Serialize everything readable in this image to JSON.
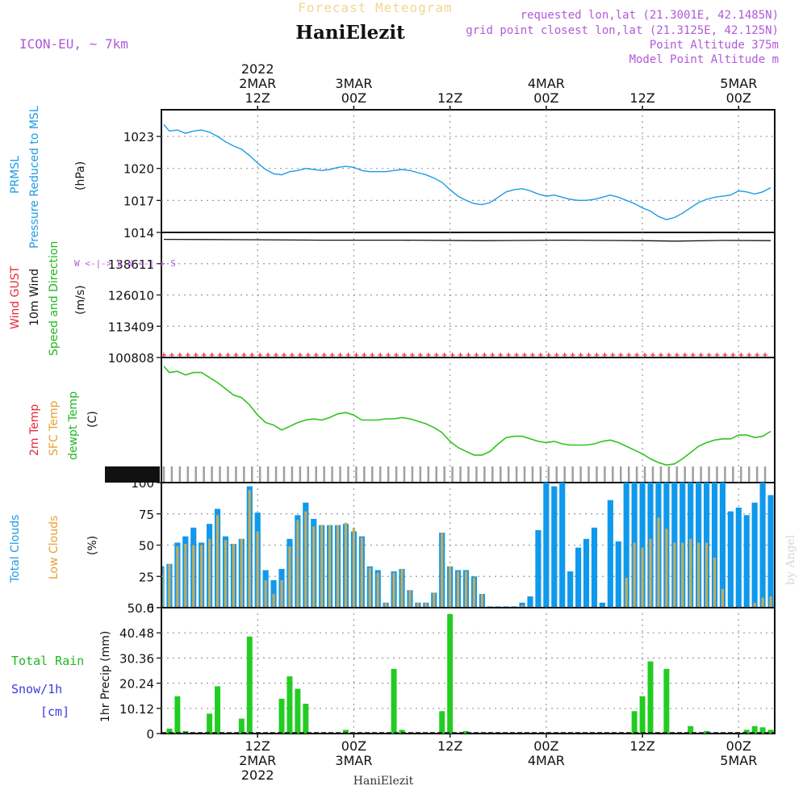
{
  "header": {
    "title_faded": "Forecast Meteogram",
    "station": "HaniElezit",
    "model": "ICON-EU, ~ 7km",
    "requested": "requested lon,lat (21.3001E, 42.1485N)",
    "closest": "grid point closest lon,lat (21.3125E, 42.125N)",
    "point_altitude": "Point Altitude 375m",
    "model_altitude": "Model Point Altitude m",
    "footer_station": "HaniElezit",
    "watermark": "by Angel"
  },
  "time_axis": {
    "top": [
      {
        "t": 12,
        "lines": [
          "2022",
          "2MAR",
          "12Z"
        ]
      },
      {
        "t": 24,
        "lines": [
          "3MAR",
          "00Z"
        ]
      },
      {
        "t": 36,
        "lines": [
          "12Z"
        ]
      },
      {
        "t": 48,
        "lines": [
          "4MAR",
          "00Z"
        ]
      },
      {
        "t": 60,
        "lines": [
          "12Z"
        ]
      },
      {
        "t": 72,
        "lines": [
          "5MAR",
          "00Z"
        ]
      }
    ],
    "bottom": [
      {
        "t": 12,
        "lines": [
          "12Z",
          "2MAR",
          "2022"
        ]
      },
      {
        "t": 24,
        "lines": [
          "00Z",
          "3MAR"
        ]
      },
      {
        "t": 36,
        "lines": [
          "12Z"
        ]
      },
      {
        "t": 48,
        "lines": [
          "00Z",
          "4MAR"
        ]
      },
      {
        "t": 60,
        "lines": [
          "12Z"
        ]
      },
      {
        "t": 72,
        "lines": [
          "00Z",
          "5MAR"
        ]
      }
    ]
  },
  "chart_data": [
    {
      "type": "line",
      "panel": "pressure",
      "labels": {
        "l1": "PRMSL",
        "l2": "Pressure Reduced to MSL",
        "unit": "(hPa)"
      },
      "colors": {
        "l1": "#1e9be6",
        "l2": "#1e9be6",
        "line": "#1e9be6"
      },
      "xlim": [
        0,
        76.5
      ],
      "ylim": [
        1014,
        1025.5
      ],
      "yticks": [
        1014,
        1017,
        1020,
        1023
      ],
      "x": [
        0.3,
        1,
        2,
        3,
        4,
        5,
        6,
        7,
        8,
        9,
        10,
        11,
        12,
        13,
        14,
        15,
        16,
        17,
        18,
        19,
        20,
        21,
        22,
        23,
        24,
        25,
        26,
        27,
        28,
        29,
        30,
        31,
        32,
        33,
        34,
        35,
        36,
        37,
        38,
        39,
        40,
        41,
        42,
        43,
        44,
        45,
        46,
        47,
        48,
        49,
        50,
        51,
        52,
        53,
        54,
        55,
        56,
        57,
        58,
        59,
        60,
        61,
        62,
        63,
        64,
        65,
        66,
        67,
        68,
        69,
        70,
        71,
        72,
        73,
        74,
        75,
        76
      ],
      "y": [
        1024.1,
        1023.5,
        1023.6,
        1023.3,
        1023.5,
        1023.6,
        1023.4,
        1023.0,
        1022.5,
        1022.1,
        1021.8,
        1021.2,
        1020.5,
        1019.9,
        1019.5,
        1019.4,
        1019.7,
        1019.8,
        1020.0,
        1019.9,
        1019.8,
        1019.9,
        1020.1,
        1020.2,
        1020.1,
        1019.8,
        1019.7,
        1019.7,
        1019.7,
        1019.8,
        1019.9,
        1019.8,
        1019.6,
        1019.4,
        1019.1,
        1018.7,
        1018.0,
        1017.4,
        1017.0,
        1016.7,
        1016.6,
        1016.8,
        1017.3,
        1017.8,
        1018.0,
        1018.1,
        1017.9,
        1017.6,
        1017.4,
        1017.5,
        1017.3,
        1017.1,
        1017.0,
        1017.0,
        1017.1,
        1017.3,
        1017.5,
        1017.3,
        1017.0,
        1016.7,
        1016.3,
        1016.0,
        1015.5,
        1015.2,
        1015.4,
        1015.8,
        1016.3,
        1016.8,
        1017.1,
        1017.3,
        1017.4,
        1017.5,
        1017.9,
        1017.8,
        1017.6,
        1017.8,
        1018.2
      ]
    },
    {
      "type": "line",
      "panel": "wind",
      "labels": {
        "l1": "Wind GUST",
        "l2": "10m Wind",
        "l3": "Speed and Direction",
        "unit": "(m/s)"
      },
      "colors": {
        "l1": "#e8283c",
        "l2": "#111111",
        "l3": "#1fb81f",
        "line": "#111111",
        "gust": "#e8283c",
        "compass": "#b05ad8"
      },
      "compass": "W <-|-> E   N <-|-> S",
      "xlim": [
        0,
        76.5
      ],
      "ylim": [
        100808,
        151212
      ],
      "yticks": [
        100808,
        113409,
        126010,
        138611
      ],
      "x": [
        0.3,
        10,
        20,
        30,
        40,
        50,
        60,
        64,
        70,
        76
      ],
      "y": [
        148400,
        148300,
        148100,
        148100,
        147900,
        148100,
        147900,
        147700,
        148000,
        147900
      ],
      "gust_y": 100808
    },
    {
      "type": "line",
      "panel": "temperature",
      "labels": {
        "l1": "2m Temp",
        "l2": "SFC Temp",
        "l3": "dewpt Temp",
        "unit": "(C)"
      },
      "colors": {
        "l1": "#e8283c",
        "l2": "#e8a030",
        "l3": "#1fb81f",
        "line": "#2ec41c",
        "ticks": "#a0a0a0"
      },
      "xlim": [
        0,
        76.5
      ],
      "ylim": [
        0,
        100
      ],
      "x": [
        0.3,
        1,
        2,
        3,
        4,
        5,
        6,
        7,
        8,
        9,
        10,
        11,
        12,
        13,
        14,
        15,
        16,
        17,
        18,
        19,
        20,
        21,
        22,
        23,
        24,
        25,
        26,
        27,
        28,
        29,
        30,
        31,
        32,
        33,
        34,
        35,
        36,
        37,
        38,
        39,
        40,
        41,
        42,
        43,
        44,
        45,
        46,
        47,
        48,
        49,
        50,
        51,
        52,
        53,
        54,
        55,
        56,
        57,
        58,
        59,
        60,
        61,
        62,
        63,
        64,
        65,
        66,
        67,
        68,
        69,
        70,
        71,
        72,
        73,
        74,
        75,
        76
      ],
      "y": [
        93,
        88,
        89,
        86,
        88,
        88,
        84,
        80,
        75,
        70,
        68,
        62,
        54,
        48,
        46,
        42,
        45,
        48,
        50,
        51,
        50,
        52,
        55,
        56,
        54,
        50,
        50,
        50,
        51,
        51,
        52,
        51,
        49,
        47,
        44,
        40,
        33,
        28,
        25,
        22,
        22,
        25,
        31,
        36,
        37,
        37,
        35,
        33,
        32,
        33,
        31,
        30,
        30,
        30,
        31,
        33,
        34,
        32,
        29,
        26,
        23,
        19,
        16,
        14,
        15,
        19,
        24,
        29,
        32,
        34,
        35,
        35,
        38,
        38,
        36,
        37,
        41
      ]
    },
    {
      "type": "bar",
      "panel": "clouds",
      "labels": {
        "l1": "Total Clouds",
        "l2": "Low Clouds",
        "unit": "(%)"
      },
      "colors": {
        "total": "#0f99ec",
        "low": "#c8aa5c"
      },
      "xlim": [
        0,
        76.5
      ],
      "ylim": [
        0,
        100
      ],
      "yticks": [
        0,
        25,
        50,
        75,
        100
      ],
      "x": [
        0,
        1,
        2,
        3,
        4,
        5,
        6,
        7,
        8,
        9,
        10,
        11,
        12,
        13,
        14,
        15,
        16,
        17,
        18,
        19,
        20,
        21,
        22,
        23,
        24,
        25,
        26,
        27,
        28,
        29,
        30,
        31,
        32,
        33,
        34,
        35,
        36,
        37,
        38,
        39,
        40,
        41,
        42,
        43,
        44,
        45,
        46,
        47,
        48,
        49,
        50,
        51,
        52,
        53,
        54,
        55,
        56,
        57,
        58,
        59,
        60,
        61,
        62,
        63,
        64,
        65,
        66,
        67,
        68,
        69,
        70,
        71,
        72,
        73,
        74,
        75,
        76
      ],
      "total": [
        33,
        35,
        52,
        57,
        64,
        52,
        67,
        79,
        57,
        51,
        55,
        97,
        76,
        30,
        22,
        31,
        55,
        74,
        84,
        71,
        66,
        66,
        66,
        67,
        61,
        57,
        33,
        30,
        4,
        29,
        31,
        14,
        4,
        4,
        12,
        60,
        33,
        30,
        30,
        25,
        11,
        1,
        1,
        1,
        1,
        4,
        9,
        62,
        100,
        97,
        100,
        29,
        48,
        55,
        64,
        4,
        86,
        53,
        100,
        100,
        100,
        100,
        100,
        100,
        100,
        100,
        100,
        100,
        100,
        100,
        100,
        77,
        80,
        74,
        84,
        100,
        90
      ],
      "low": [
        32,
        35,
        49,
        51,
        50,
        50,
        55,
        74,
        54,
        51,
        55,
        94,
        61,
        22,
        11,
        22,
        49,
        70,
        77,
        65,
        66,
        66,
        66,
        68,
        64,
        56,
        32,
        28,
        4,
        28,
        31,
        14,
        4,
        4,
        12,
        60,
        33,
        29,
        29,
        24,
        11,
        0,
        0,
        0,
        0,
        2,
        0,
        0,
        0,
        0,
        0,
        0,
        0,
        0,
        0,
        0,
        0,
        0,
        24,
        52,
        48,
        55,
        72,
        63,
        52,
        52,
        55,
        52,
        52,
        40,
        15,
        0,
        0,
        0,
        4,
        8,
        9
      ]
    },
    {
      "type": "bar",
      "panel": "precipitation",
      "labels": {
        "l1": "Total Rain",
        "l2": "Snow/1h",
        "l3": "[cm]",
        "unit": "1hr Precip (mm)"
      },
      "colors": {
        "l1": "#1fb81f",
        "l2": "#3c3cdc",
        "l3": "#3c3cdc",
        "bar": "#22cc22"
      },
      "xlim": [
        0,
        76.5
      ],
      "ylim": [
        0,
        50.6
      ],
      "yticks": [
        0,
        10.12,
        20.24,
        30.36,
        40.48,
        50.6
      ],
      "x": [
        1,
        2,
        3,
        6,
        7,
        10,
        11,
        15,
        16,
        17,
        18,
        23,
        29,
        30,
        35,
        36,
        38,
        59,
        60,
        61,
        63,
        66,
        68,
        73,
        74,
        75,
        76
      ],
      "values": [
        2,
        15,
        1,
        8,
        19,
        6,
        39,
        14,
        23,
        18,
        12,
        1.5,
        26,
        1.5,
        9,
        48,
        1,
        9,
        15,
        29,
        26,
        3,
        1,
        1.5,
        3,
        2.5,
        1.5
      ]
    }
  ]
}
